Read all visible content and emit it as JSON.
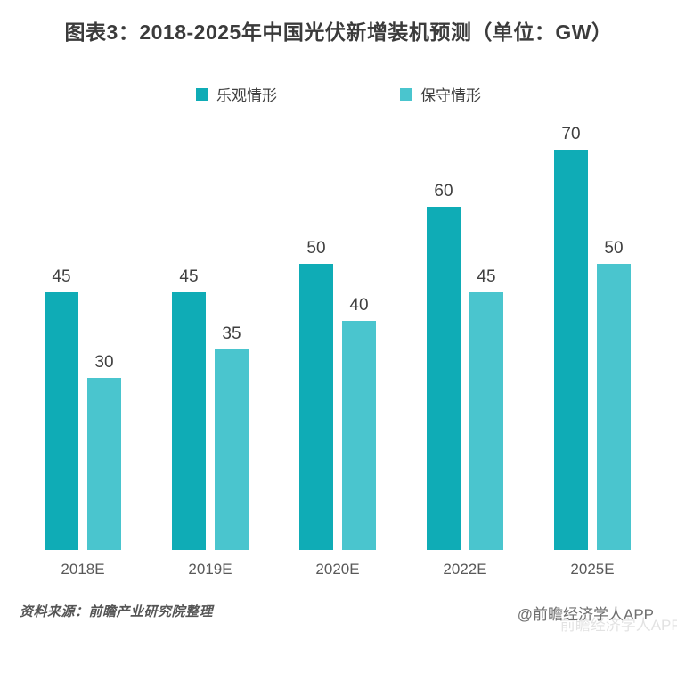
{
  "title": "图表3：2018-2025年中国光伏新增装机预测（单位：GW）",
  "chart_data": {
    "type": "bar",
    "title": "图表3：2018-2025年中国光伏新增装机预测（单位：GW）",
    "categories": [
      "2018E",
      "2019E",
      "2020E",
      "2022E",
      "2025E"
    ],
    "series": [
      {
        "name": "乐观情形",
        "color": "#0FACB6",
        "values": [
          45,
          45,
          50,
          60,
          70
        ]
      },
      {
        "name": "保守情形",
        "color": "#4AC5CE",
        "values": [
          30,
          35,
          40,
          45,
          50
        ]
      }
    ],
    "xlabel": "",
    "ylabel": "",
    "unit": "GW",
    "ylim": [
      0,
      75
    ],
    "grid": false,
    "data_labels": true,
    "legend_position": "top-center"
  },
  "footer": {
    "source": "资料来源：前瞻产业研究院整理",
    "credit": "@前瞻经济学人APP",
    "watermark": "前瞻经济学人APP"
  },
  "colors": {
    "optimistic": "#0FACB6",
    "conservative": "#4AC5CE",
    "title_text": "#3b3b3b",
    "axis_text": "#595959",
    "value_text": "#3f3f3f",
    "footer_text": "#555555"
  }
}
